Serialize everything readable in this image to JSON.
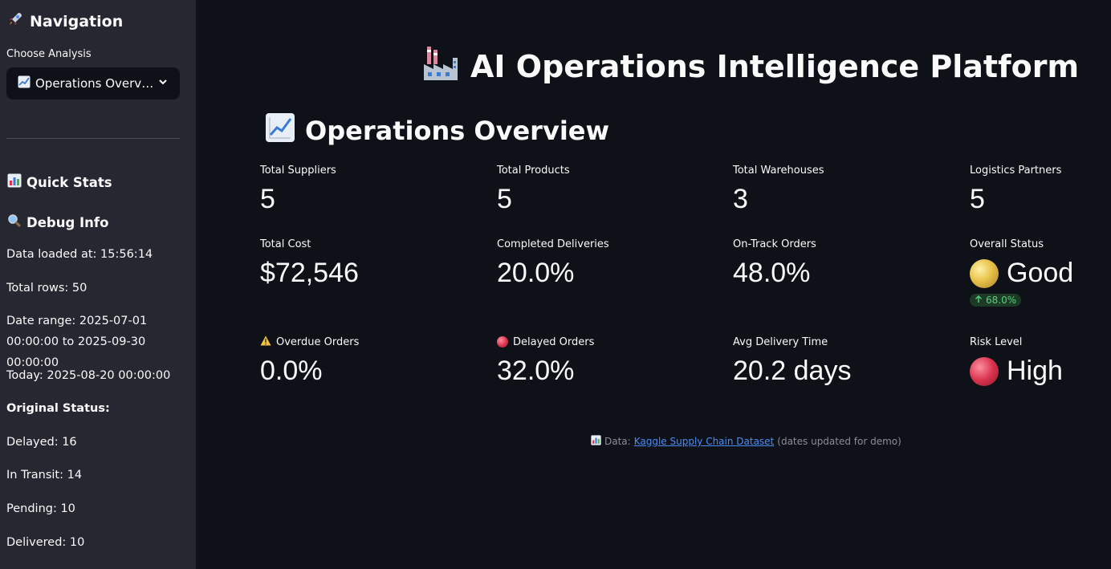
{
  "sidebar": {
    "title": "Navigation",
    "choose_label": "Choose Analysis",
    "select_value": "Operations Overv…",
    "quick_stats_title": "Quick Stats",
    "debug_title": "Debug Info",
    "debug": {
      "loaded_at": "Data loaded at: 15:56:14",
      "total_rows": "Total rows: 50",
      "date_range": "Date range: 2025-07-01 00:00:00 to 2025-09-30 00:00:00",
      "today": "Today: 2025-08-20 00:00:00",
      "original_status": "Original Status:",
      "delayed": "Delayed: 16",
      "in_transit": "In Transit: 14",
      "pending": "Pending: 10",
      "delivered": "Delivered: 10"
    }
  },
  "main": {
    "app_title": "AI Operations Intelligence Platform",
    "section_title": "Operations Overview",
    "metrics": {
      "total_suppliers": {
        "label": "Total Suppliers",
        "value": "5"
      },
      "total_products": {
        "label": "Total Products",
        "value": "5"
      },
      "total_warehouses": {
        "label": "Total Warehouses",
        "value": "3"
      },
      "logistics_partners": {
        "label": "Logistics Partners",
        "value": "5"
      },
      "total_cost": {
        "label": "Total Cost",
        "value": "$72,546"
      },
      "completed_deliveries": {
        "label": "Completed Deliveries",
        "value": "20.0%"
      },
      "on_track_orders": {
        "label": "On-Track Orders",
        "value": "48.0%"
      },
      "overall_status": {
        "label": "Overall Status",
        "value": "Good",
        "delta": "68.0%"
      },
      "overdue_orders": {
        "label": "Overdue Orders",
        "value": "0.0%"
      },
      "delayed_orders": {
        "label": "Delayed Orders",
        "value": "32.0%"
      },
      "avg_delivery_time": {
        "label": "Avg Delivery Time",
        "value": "20.2 days"
      },
      "risk_level": {
        "label": "Risk Level",
        "value": "High"
      }
    },
    "footer": {
      "prefix": "Data:",
      "link_text": "Kaggle Supply Chain Dataset",
      "suffix": "(dates updated for demo)"
    }
  },
  "colors": {
    "background": "#0e1117",
    "sidebar": "#262730",
    "link": "#4b8df8",
    "delta_green": "#5ad07a"
  },
  "icons": [
    "rocket-icon",
    "chart-increasing-icon",
    "chevron-down-icon",
    "bar-chart-icon",
    "magnifier-icon",
    "factory-icon",
    "warning-icon",
    "red-circle-icon",
    "yellow-circle-icon",
    "arrow-up-icon"
  ]
}
